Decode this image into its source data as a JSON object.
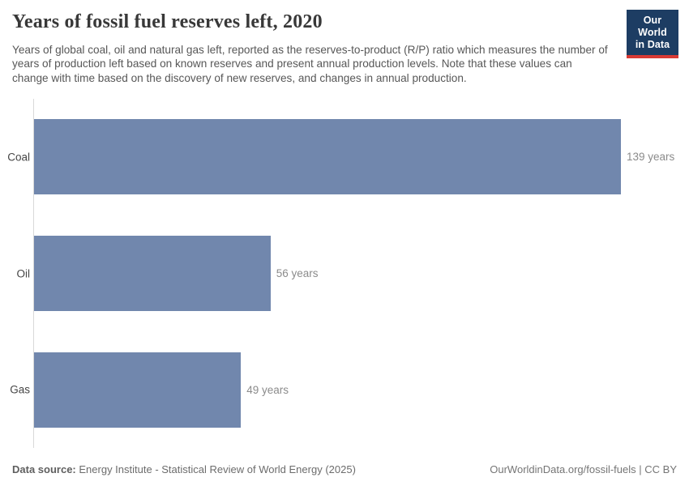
{
  "header": {
    "title": "Years of fossil fuel reserves left, 2020",
    "subtitle": "Years of global coal, oil and natural gas left, reported as the reserves-to-product (R/P) ratio which measures the number of years of production left based on known reserves and present annual production levels. Note that these values can change with time based on the discovery of new reserves, and changes in annual production.",
    "logo": {
      "line1": "Our World",
      "line2": "in Data"
    }
  },
  "chart_data": {
    "type": "bar",
    "orientation": "horizontal",
    "title": "Years of fossil fuel reserves left, 2020",
    "categories": [
      "Coal",
      "Oil",
      "Gas"
    ],
    "values": [
      139,
      56,
      49
    ],
    "value_labels": [
      "139 years",
      "56 years",
      "49 years"
    ],
    "unit": "years",
    "xlim": [
      0,
      139
    ],
    "grid": false,
    "legend": "none",
    "bar_color": "#7187ad"
  },
  "footer": {
    "data_source_label": "Data source:",
    "data_source": "Energy Institute - Statistical Review of World Energy (2025)",
    "link": "OurWorldinData.org/fossil-fuels",
    "separator": " | ",
    "license": "CC BY"
  },
  "colors": {
    "bar": "#7187ad",
    "axis_line": "#d9d9d9",
    "logo_background": "#1d3d63",
    "logo_stripe": "#d93a34",
    "title_text": "#383838",
    "subtitle_text": "#575757",
    "value_label_text": "#8b8b8b"
  }
}
